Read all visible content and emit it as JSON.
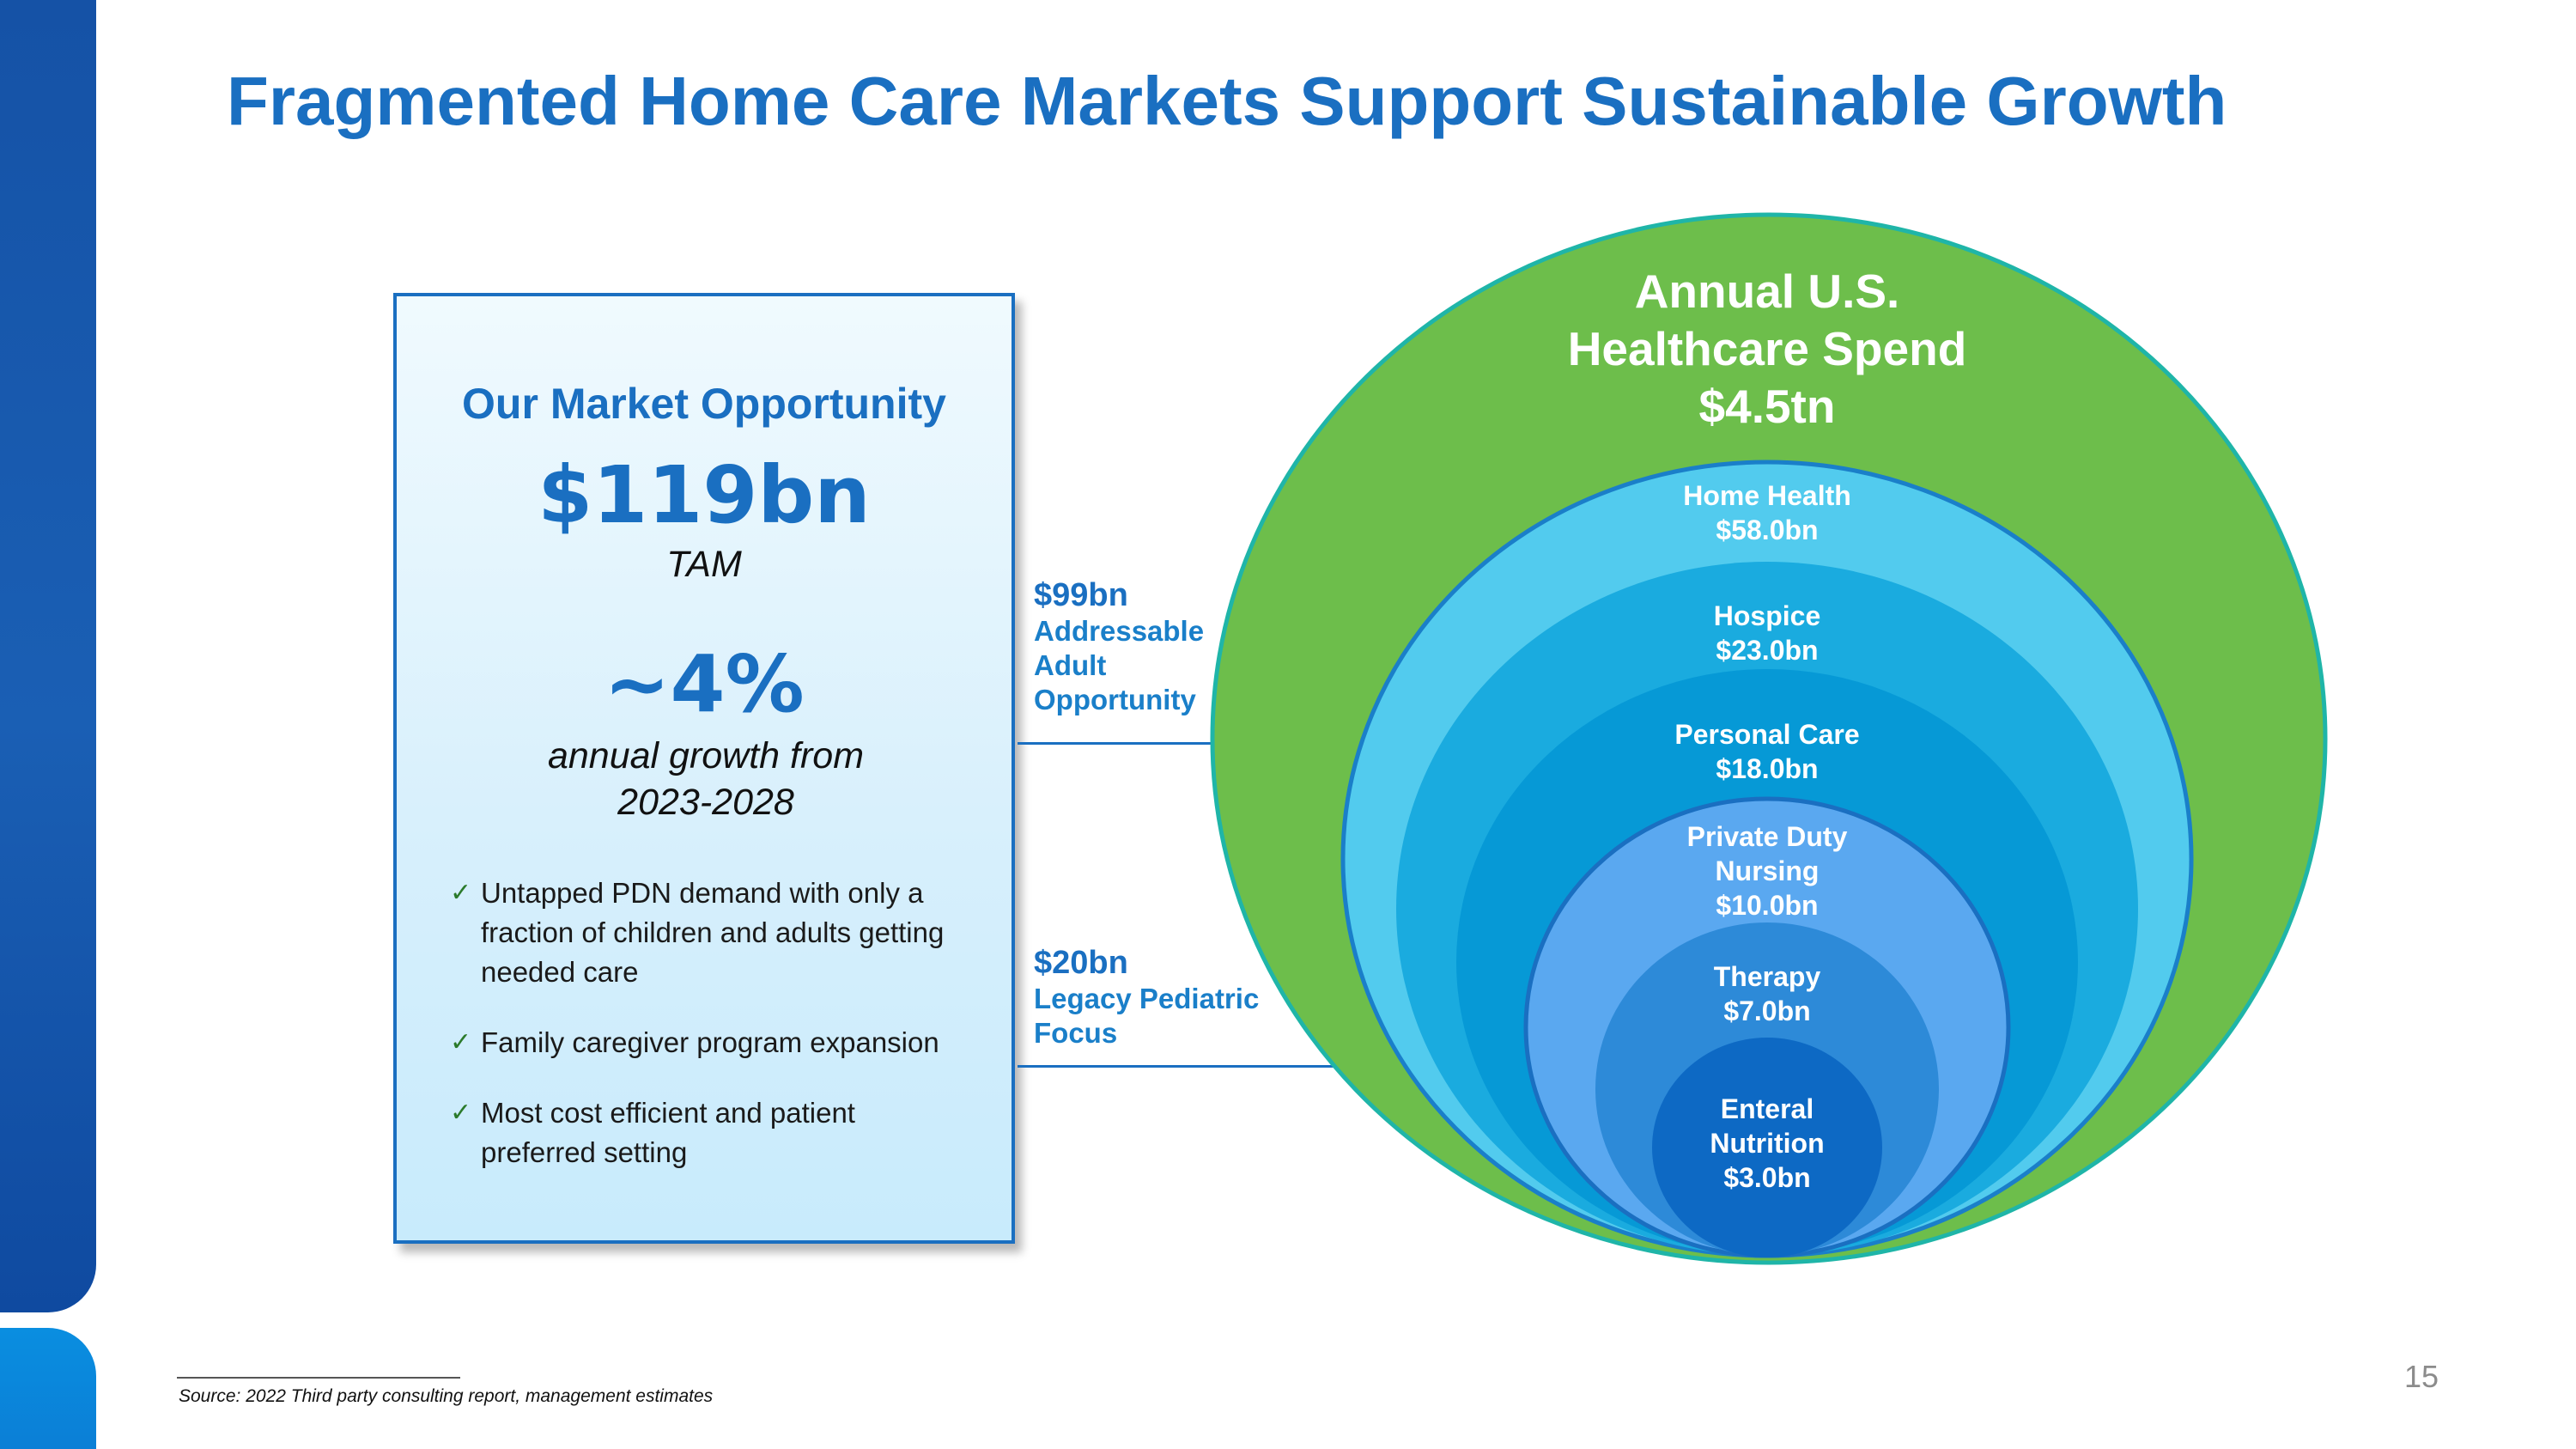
{
  "title": "Fragmented Home Care Markets Support Sustainable Growth",
  "opportunity": {
    "heading": "Our Market Opportunity",
    "tam_value": "$119bn",
    "tam_label": "TAM",
    "growth_value": "~4%",
    "growth_label_line1": "annual growth from",
    "growth_label_line2": "2023-2028",
    "bullets": [
      {
        "line1": "Untapped PDN demand with only a",
        "line2": "fraction of children and adults getting",
        "line3": "needed care"
      },
      {
        "line1": "Family caregiver program expansion"
      },
      {
        "line1": "Most cost efficient and patient",
        "line2": "preferred setting"
      }
    ],
    "check_icon": "✓"
  },
  "callouts": {
    "adult": {
      "amount": "$99bn",
      "line1": "Addressable",
      "line2": "Adult",
      "line3": "Opportunity"
    },
    "pediatric": {
      "amount": "$20bn",
      "line1": "Legacy Pediatric",
      "line2": "Focus"
    }
  },
  "spend": {
    "line1": "Annual U.S.",
    "line2": "Healthcare Spend",
    "line3": "$4.5tn"
  },
  "segments": [
    {
      "name": "Home Health",
      "value": "$58.0bn"
    },
    {
      "name": "Hospice",
      "value": "$23.0bn"
    },
    {
      "name": "Personal Care",
      "value": "$18.0bn"
    },
    {
      "name_line1": "Private Duty",
      "name_line2": "Nursing",
      "value": "$10.0bn"
    },
    {
      "name": "Therapy",
      "value": "$7.0bn"
    },
    {
      "name_line1": "Enteral",
      "name_line2": "Nutrition",
      "value": "$3.0bn"
    }
  ],
  "colors": {
    "title_blue": "#1a6fc1",
    "outer_green": "#6dbe4b",
    "home_health": "#52cbee",
    "hospice": "#1aabdf",
    "personal_care": "#0699d6",
    "private_duty": "#5aa8f0",
    "therapy": "#2d8ad8",
    "enteral": "#0d69c4"
  },
  "footer": {
    "page_number": "15",
    "source": "Source: 2022 Third party consulting report, management estimates"
  }
}
